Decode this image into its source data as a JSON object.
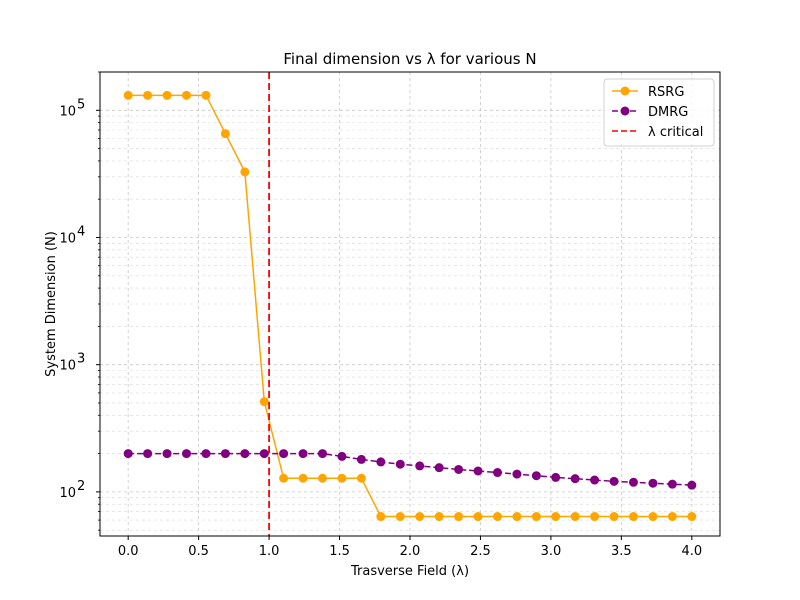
{
  "chart_data": {
    "type": "line",
    "title": "Final dimension vs λ for various N",
    "xlabel": "Trasverse Field (λ)",
    "ylabel": "System Dimension (N)",
    "xlim": [
      -0.2,
      4.2
    ],
    "ylim": [
      45,
      200000
    ],
    "yscale": "log",
    "grid": true,
    "legend_position": "top-right",
    "x_ticks": [
      "0.0",
      "0.5",
      "1.0",
      "1.5",
      "2.0",
      "2.5",
      "3.0",
      "3.5",
      "4.0"
    ],
    "y_ticks": [
      {
        "base": "10",
        "exp": "2"
      },
      {
        "base": "10",
        "exp": "3"
      },
      {
        "base": "10",
        "exp": "4"
      },
      {
        "base": "10",
        "exp": "5"
      }
    ],
    "x": [
      0.0,
      0.138,
      0.276,
      0.414,
      0.552,
      0.69,
      0.828,
      0.966,
      1.103,
      1.241,
      1.379,
      1.517,
      1.655,
      1.793,
      1.931,
      2.069,
      2.207,
      2.345,
      2.483,
      2.621,
      2.759,
      2.897,
      3.034,
      3.172,
      3.31,
      3.448,
      3.586,
      3.724,
      3.862,
      4.0
    ],
    "series": [
      {
        "name": "RSRG",
        "color": "#ffa500",
        "line_style": "solid",
        "values": [
          131072,
          131072,
          131072,
          131072,
          131072,
          65536,
          32768,
          512,
          128,
          128,
          128,
          128,
          128,
          64,
          64,
          64,
          64,
          64,
          64,
          64,
          64,
          64,
          64,
          64,
          64,
          64,
          64,
          64,
          64,
          64
        ]
      },
      {
        "name": "DMRG",
        "color": "#800080",
        "line_style": "dashed",
        "values": [
          200,
          200,
          200,
          200,
          200,
          200,
          200,
          200,
          200,
          200,
          200,
          190,
          180,
          172,
          165,
          160,
          155,
          150,
          146,
          142,
          138,
          134,
          130,
          127,
          124,
          121,
          119,
          117,
          115,
          113
        ]
      }
    ],
    "reference_lines": [
      {
        "name": "λ critical",
        "x": 1.0,
        "color": "#ff0000",
        "line_style": "dashed"
      }
    ]
  }
}
